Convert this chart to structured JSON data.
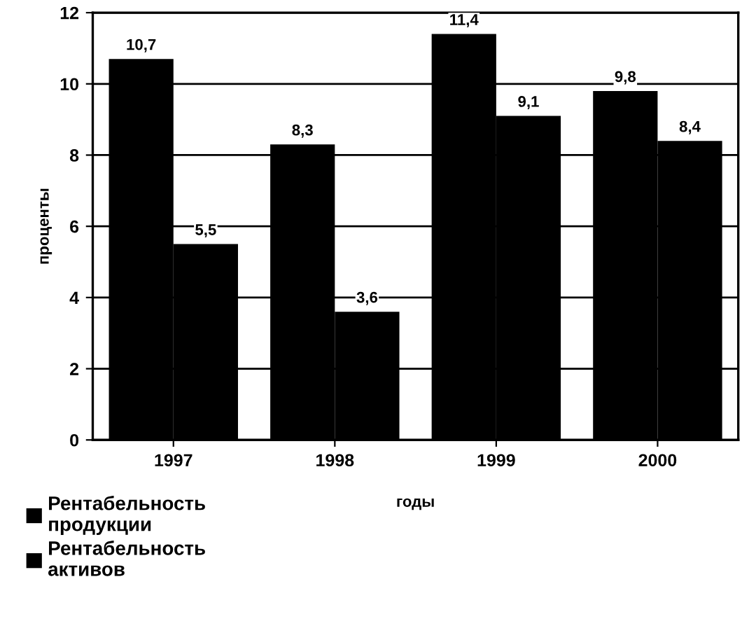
{
  "chart_data": {
    "type": "bar",
    "xlabel": "годы",
    "ylabel": "проценты",
    "categories": [
      "1997",
      "1998",
      "1999",
      "2000"
    ],
    "series": [
      {
        "name": "Рентабельность продукции",
        "color": "#000000",
        "values": [
          10.7,
          8.3,
          11.4,
          9.8
        ],
        "value_labels": [
          "10,7",
          "8,3",
          "11,4",
          "9,8"
        ]
      },
      {
        "name": "Рентабельность активов",
        "color": "#000000",
        "values": [
          5.5,
          3.6,
          9.1,
          8.4
        ],
        "value_labels": [
          "5,5",
          "3,6",
          "9,1",
          "8,4"
        ]
      }
    ],
    "ylim": [
      0,
      12
    ],
    "yticks": [
      0,
      2,
      4,
      6,
      8,
      10,
      12
    ],
    "grid": "y",
    "legend": "bottom left"
  }
}
